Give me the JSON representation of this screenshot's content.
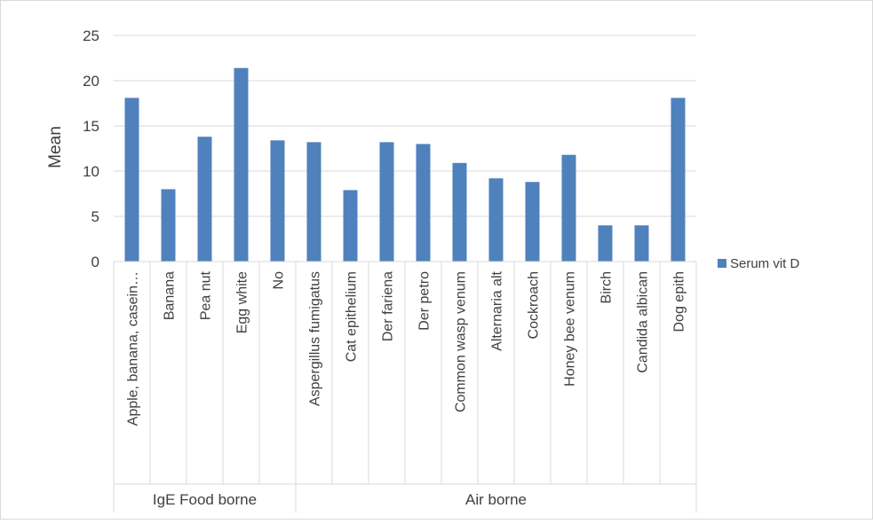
{
  "chart_data": {
    "type": "bar",
    "ylabel": "Mean",
    "ylim": [
      0,
      25
    ],
    "yticks": [
      0,
      5,
      10,
      15,
      20,
      25
    ],
    "grid": true,
    "legend_position": "right",
    "categories": [
      "Apple, banana, casein…",
      "Banana",
      "Pea nut",
      "Egg white",
      "No",
      "Aspergillus fumigatus",
      "Cat epithelium",
      "Der fariena",
      "Der petro",
      "Common wasp venum",
      "Alternaria alt",
      "Cockroach",
      "Honey bee venum",
      "Birch",
      "Candida albican",
      "Dog epith"
    ],
    "groups": [
      {
        "label": "IgE Food borne",
        "count": 5
      },
      {
        "label": "Air borne",
        "count": 11
      }
    ],
    "series": [
      {
        "name": "Serum vit D",
        "color": "#4f81bd",
        "values": [
          18.1,
          8.0,
          13.8,
          21.4,
          13.4,
          13.2,
          7.9,
          13.2,
          13.0,
          10.9,
          9.2,
          8.8,
          11.8,
          4.0,
          4.0,
          18.1
        ]
      }
    ]
  }
}
